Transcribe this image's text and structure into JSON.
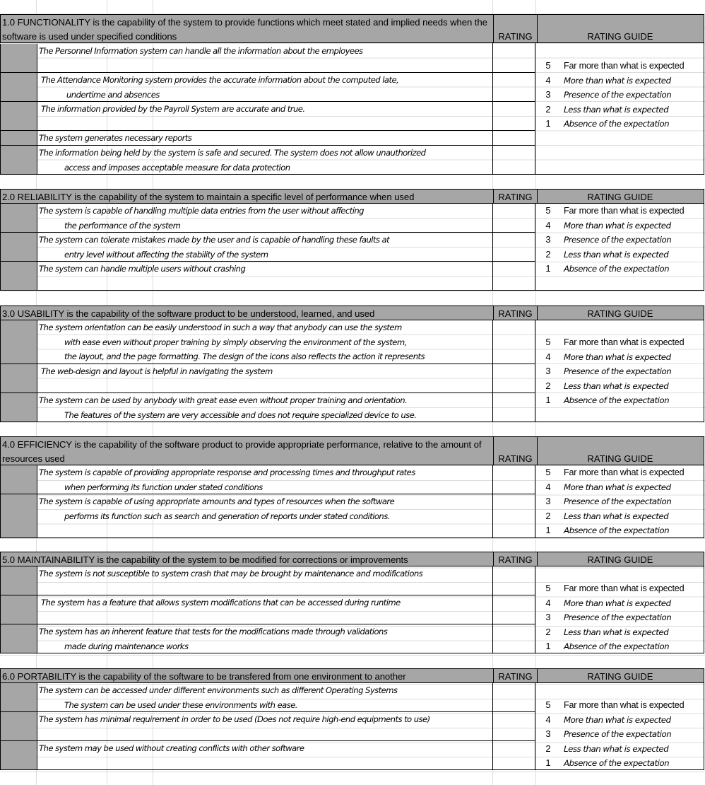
{
  "rating_header": "RATING",
  "guide_header": "RATING GUIDE",
  "guide": [
    {
      "score": "5",
      "label": "Far more than what is expected",
      "italic": false
    },
    {
      "score": "4",
      "label": "More than what is expected",
      "italic": true
    },
    {
      "score": "3",
      "label": "Presence of the expectation",
      "italic": true
    },
    {
      "score": "2",
      "label": "Less than what is expected",
      "italic": true
    },
    {
      "score": "1",
      "label": "Absence of the expectation",
      "italic": true
    }
  ],
  "sections": [
    {
      "title": "1.0 FUNCTIONALITY is the capability of the system to provide functions which meet stated and implied needs when the software is used under  specified conditions",
      "items": [
        {
          "lines": [
            "The Personnel Information system can handle all the information about the employees"
          ]
        },
        {
          "lines": [
            "The Attendance Monitoring system provides the accurate information about the computed late,",
            "undertime  and absences"
          ]
        },
        {
          "lines": [
            "The information provided by the Payroll System are accurate and true."
          ]
        },
        {
          "lines": [
            "The system generates necessary reports"
          ]
        },
        {
          "lines": [
            "The information being held by the system is safe and secured.  The system does not allow unauthorized",
            "access and imposes acceptable measure for data protection"
          ]
        }
      ]
    },
    {
      "title": "2.0 RELIABILITY is the capability of the system to maintain a specific level of performance when used",
      "items": [
        {
          "lines": [
            "The system is capable of handling multiple data entries from the user without affecting",
            "the performance of the system"
          ]
        },
        {
          "lines": [
            "The system can tolerate mistakes made by the user and is capable of handling these faults at",
            "entry level without affecting the stability of the system"
          ]
        },
        {
          "lines": [
            "The system can handle multiple users without crashing"
          ]
        }
      ]
    },
    {
      "title": "3.0 USABILITY is the capability of the software product to be understood, learned, and used",
      "items": [
        {
          "lines": [
            "The system orientation can be easily understood in such a way that anybody can use the system",
            "with ease even without proper training by simply observing the environment of the system,",
            "the layout, and the page formatting.  The design of the icons also reflects the action it represents"
          ]
        },
        {
          "lines": [
            "The web-design and layout is  helpful in navigating the system"
          ]
        },
        {
          "lines": [
            "The system can be used by anybody with great ease even without proper training and orientation.",
            "The features of the system are very accessible and does not require specialized device to use."
          ]
        }
      ]
    },
    {
      "title": "4.0 EFFICIENCY is the capability of the software product to provide appropriate performance, relative to the amount of resources used",
      "items": [
        {
          "lines": [
            "The system is capable of providing appropriate response and processing times and throughput rates",
            "when performing its function under stated conditions"
          ]
        },
        {
          "lines": [
            "The system is capable of using appropriate amounts and types of resources when the software",
            "performs its function such as search and generation of reports under stated  conditions."
          ]
        }
      ]
    },
    {
      "title": "5.0 MAINTAINABILITY is the capability of the system to be modified for corrections or improvements",
      "items": [
        {
          "lines": [
            "The system is not susceptible to system crash that may be brought by maintenance and modifications"
          ]
        },
        {
          "lines": [
            "The system has a feature that allows system modifications that can be accessed during runtime"
          ]
        },
        {
          "lines": [
            "The system has an inherent feature that tests for the modifications made through validations",
            "made during maintenance works"
          ]
        }
      ]
    },
    {
      "title": "6.0 PORTABILITY is the capability of the software to be transfered from one environment to another",
      "items": [
        {
          "lines": [
            "The system can be accessed under different environments such as different Operating Systems",
            "The system can be used under these environments with ease."
          ]
        },
        {
          "lines": [
            "The system has minimal requirement in order to be used (Does not require high-end equipments to use)"
          ]
        },
        {
          "lines": [
            "The system may be used without creating conflicts with other software"
          ]
        }
      ]
    }
  ]
}
